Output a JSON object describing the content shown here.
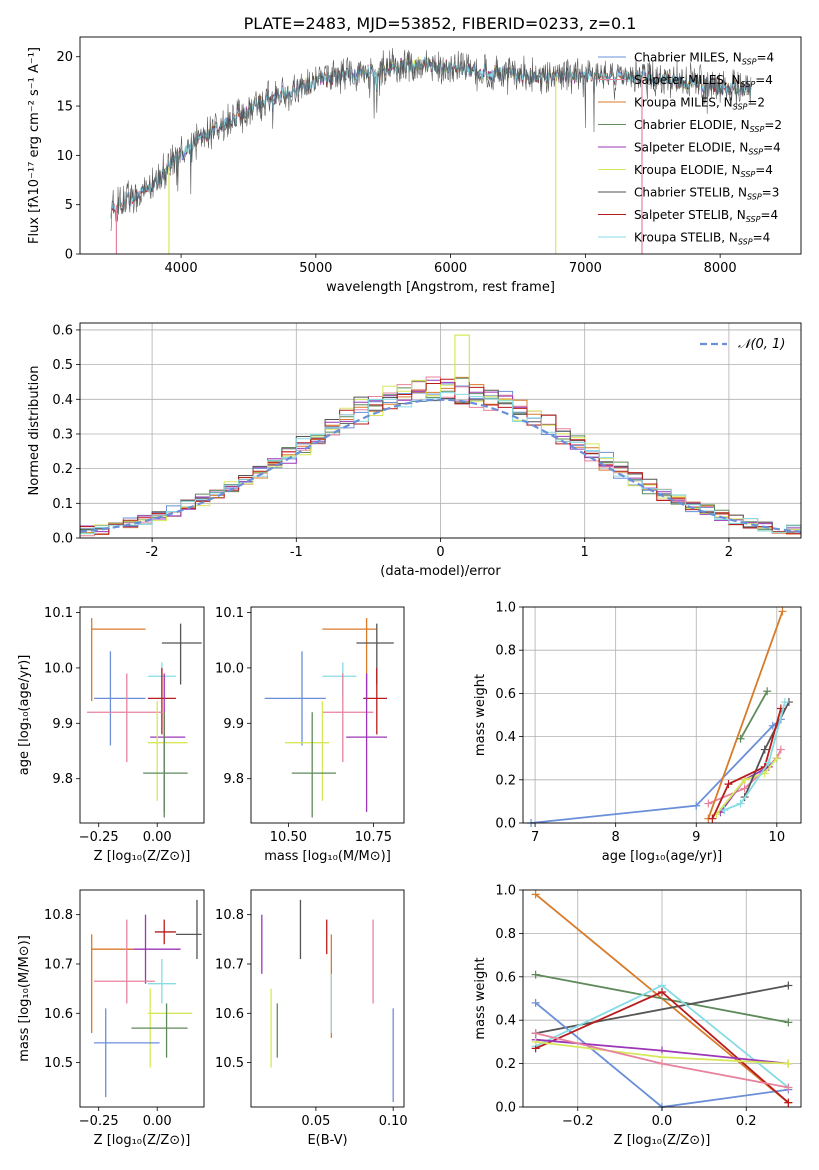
{
  "title": "PLATE=2483, MJD=53852, FIBERID=0233, z=0.1",
  "colors": {
    "Chabrier MILES": "#6a8fd8",
    "Salpeter MILES": "#e8839e",
    "Kroupa MILES": "#d97b2a",
    "Chabrier ELODIE": "#5f8a5a",
    "Salpeter ELODIE": "#9b36b7",
    "Kroupa ELODIE": "#d6e85a",
    "Chabrier STELIB": "#555555",
    "Salpeter STELIB": "#b81c1c",
    "Kroupa STELIB": "#86dbe5"
  },
  "legend_top": [
    {
      "text": "Chabrier MILES, N",
      "sub": "SSP",
      "tail": "=4",
      "model": "Chabrier MILES"
    },
    {
      "text": "Salpeter MILES, N",
      "sub": "SSP",
      "tail": "=4",
      "model": "Salpeter MILES"
    },
    {
      "text": "Kroupa MILES, N",
      "sub": "SSP",
      "tail": "=2",
      "model": "Kroupa MILES"
    },
    {
      "text": "Chabrier ELODIE, N",
      "sub": "SSP",
      "tail": "=2",
      "model": "Chabrier ELODIE"
    },
    {
      "text": "Salpeter ELODIE, N",
      "sub": "SSP",
      "tail": "=4",
      "model": "Salpeter ELODIE"
    },
    {
      "text": "Kroupa ELODIE, N",
      "sub": "SSP",
      "tail": "=4",
      "model": "Kroupa ELODIE"
    },
    {
      "text": "Chabrier STELIB, N",
      "sub": "SSP",
      "tail": "=3",
      "model": "Chabrier STELIB"
    },
    {
      "text": "Salpeter STELIB, N",
      "sub": "SSP",
      "tail": "=4",
      "model": "Salpeter STELIB"
    },
    {
      "text": "Kroupa STELIB, N",
      "sub": "SSP",
      "tail": "=4",
      "model": "Kroupa STELIB"
    }
  ],
  "chart_data": [
    {
      "type": "line",
      "title": "PLATE=2483, MJD=53852, FIBERID=0233, z=0.1",
      "xlabel": "wavelength [Angstrom, rest frame]",
      "ylabel": "Flux [fλ10⁻¹⁷ erg cm⁻² s⁻¹ A⁻¹]",
      "xlim": [
        3250,
        8600
      ],
      "ylim": [
        0,
        22
      ],
      "xticks": [
        4000,
        5000,
        6000,
        7000,
        8000
      ],
      "yticks": [
        0,
        5,
        10,
        15,
        20
      ],
      "continuum": {
        "x": [
          3480,
          3600,
          3800,
          3950,
          4100,
          4300,
          4600,
          5000,
          5400,
          5800,
          6200,
          6600,
          7000,
          7400,
          7800,
          8200
        ],
        "y": [
          4.5,
          5.5,
          7.0,
          9.5,
          11.5,
          13.0,
          15.5,
          17.5,
          18.5,
          19.3,
          18.5,
          18.0,
          18.0,
          18.0,
          17.3,
          16.8
        ]
      },
      "dropouts": [
        {
          "x": 3520,
          "model": "Salpeter MILES"
        },
        {
          "x": 3910,
          "model": "Kroupa ELODIE"
        },
        {
          "x": 6780,
          "model": "Kroupa ELODIE"
        },
        {
          "x": 7420,
          "model": "Salpeter MILES"
        }
      ],
      "legend_loc": "right"
    },
    {
      "type": "histogram",
      "xlabel": "(data-model)/error",
      "ylabel": "Normed distribution",
      "xlim": [
        -2.5,
        2.5
      ],
      "ylim": [
        0,
        0.62
      ],
      "xticks": [
        -2,
        -1,
        0,
        1,
        2
      ],
      "yticks": [
        0.0,
        0.1,
        0.2,
        0.3,
        0.4,
        0.5,
        0.6
      ],
      "reference_label": "𝒩(0, 1)",
      "grid": true
    },
    {
      "type": "scatter",
      "xlabel": "Z [log₁₀(Z/Z⊙)]",
      "ylabel": "age  [log₁₀(age/yr)]",
      "xlim": [
        -0.33,
        0.2
      ],
      "ylim": [
        9.72,
        10.11
      ],
      "xticks": [
        -0.25,
        0.0
      ],
      "xticklabels": [
        "−0.25",
        "0.00"
      ],
      "yticks": [
        9.8,
        9.9,
        10.0,
        10.1
      ],
      "points": [
        {
          "model": "Kroupa MILES",
          "x": -0.28,
          "y": 10.07,
          "xlo": -0.28,
          "xhi": -0.05,
          "ylo": 9.94,
          "yhi": 10.09
        },
        {
          "model": "Chabrier STELIB",
          "x": 0.1,
          "y": 10.045,
          "xlo": 0.02,
          "xhi": 0.19,
          "ylo": 9.97,
          "yhi": 10.08
        },
        {
          "model": "Chabrier MILES",
          "x": -0.2,
          "y": 9.945,
          "xlo": -0.27,
          "xhi": -0.05,
          "ylo": 9.86,
          "yhi": 10.03
        },
        {
          "model": "Kroupa STELIB",
          "x": 0.02,
          "y": 9.985,
          "xlo": -0.04,
          "xhi": 0.08,
          "ylo": 9.95,
          "yhi": 10.01
        },
        {
          "model": "Salpeter STELIB",
          "x": 0.02,
          "y": 9.945,
          "xlo": -0.04,
          "xhi": 0.08,
          "ylo": 9.88,
          "yhi": 10.0
        },
        {
          "model": "Salpeter MILES",
          "x": -0.13,
          "y": 9.92,
          "xlo": -0.3,
          "xhi": 0.02,
          "ylo": 9.83,
          "yhi": 9.99
        },
        {
          "model": "Salpeter ELODIE",
          "x": 0.03,
          "y": 9.875,
          "xlo": -0.03,
          "xhi": 0.12,
          "ylo": 9.74,
          "yhi": 9.99
        },
        {
          "model": "Kroupa ELODIE",
          "x": 0.0,
          "y": 9.865,
          "xlo": -0.04,
          "xhi": 0.13,
          "ylo": 9.76,
          "yhi": 9.94
        },
        {
          "model": "Chabrier ELODIE",
          "x": 0.03,
          "y": 9.81,
          "xlo": -0.06,
          "xhi": 0.13,
          "ylo": 9.73,
          "yhi": 9.92
        }
      ]
    },
    {
      "type": "scatter",
      "xlabel": "mass [log₁₀(M/M⊙)]",
      "ylabel": "",
      "xlim": [
        10.39,
        10.84
      ],
      "ylim": [
        9.72,
        10.11
      ],
      "xticks": [
        10.5,
        10.75
      ],
      "xticklabels": [
        "10.50",
        "10.75"
      ],
      "yticks": [
        9.8,
        9.9,
        10.0,
        10.1
      ],
      "points": [
        {
          "model": "Kroupa MILES",
          "x": 10.73,
          "y": 10.07,
          "xlo": 10.6,
          "xhi": 10.76,
          "ylo": 9.94,
          "yhi": 10.09
        },
        {
          "model": "Chabrier STELIB",
          "x": 10.76,
          "y": 10.045,
          "xlo": 10.7,
          "xhi": 10.81,
          "ylo": 9.97,
          "yhi": 10.08
        },
        {
          "model": "Chabrier MILES",
          "x": 10.54,
          "y": 9.945,
          "xlo": 10.43,
          "xhi": 10.61,
          "ylo": 9.86,
          "yhi": 10.03
        },
        {
          "model": "Kroupa STELIB",
          "x": 10.66,
          "y": 9.985,
          "xlo": 10.6,
          "xhi": 10.7,
          "ylo": 9.95,
          "yhi": 10.01
        },
        {
          "model": "Salpeter STELIB",
          "x": 10.76,
          "y": 9.945,
          "xlo": 10.72,
          "xhi": 10.79,
          "ylo": 9.88,
          "yhi": 10.0
        },
        {
          "model": "Salpeter MILES",
          "x": 10.66,
          "y": 9.92,
          "xlo": 10.6,
          "xhi": 10.75,
          "ylo": 9.83,
          "yhi": 9.99
        },
        {
          "model": "Salpeter ELODIE",
          "x": 10.73,
          "y": 9.875,
          "xlo": 10.67,
          "xhi": 10.79,
          "ylo": 9.74,
          "yhi": 9.99
        },
        {
          "model": "Kroupa ELODIE",
          "x": 10.6,
          "y": 9.865,
          "xlo": 10.49,
          "xhi": 10.62,
          "ylo": 9.76,
          "yhi": 9.94
        },
        {
          "model": "Chabrier ELODIE",
          "x": 10.57,
          "y": 9.81,
          "xlo": 10.51,
          "xhi": 10.64,
          "ylo": 9.73,
          "yhi": 9.92
        }
      ]
    },
    {
      "type": "line",
      "xlabel": "age  [log₁₀(age/yr)]",
      "ylabel": "mass weight",
      "xlim": [
        6.85,
        10.3
      ],
      "ylim": [
        0,
        1
      ],
      "xticks": [
        7,
        8,
        9,
        10
      ],
      "yticks": [
        0.0,
        0.2,
        0.4,
        0.6,
        0.8,
        1.0
      ],
      "grid": true,
      "series": [
        {
          "model": "Chabrier MILES",
          "x": [
            6.95,
            9.0,
            9.95,
            10.05
          ],
          "y": [
            0.0,
            0.08,
            0.45,
            0.48
          ]
        },
        {
          "model": "Salpeter MILES",
          "x": [
            9.15,
            9.6,
            10.0,
            10.05
          ],
          "y": [
            0.09,
            0.16,
            0.3,
            0.34
          ]
        },
        {
          "model": "Kroupa MILES",
          "x": [
            9.15,
            10.07
          ],
          "y": [
            0.02,
            0.98
          ]
        },
        {
          "model": "Chabrier ELODIE",
          "x": [
            9.55,
            9.88
          ],
          "y": [
            0.39,
            0.61
          ]
        },
        {
          "model": "Salpeter ELODIE",
          "x": [
            9.3,
            9.6,
            9.9,
            10.0
          ],
          "y": [
            0.05,
            0.2,
            0.26,
            0.3
          ]
        },
        {
          "model": "Kroupa ELODIE",
          "x": [
            9.25,
            9.6,
            9.85,
            10.0
          ],
          "y": [
            0.04,
            0.2,
            0.23,
            0.3
          ]
        },
        {
          "model": "Chabrier STELIB",
          "x": [
            9.6,
            9.85,
            10.15
          ],
          "y": [
            0.12,
            0.34,
            0.56
          ]
        },
        {
          "model": "Salpeter STELIB",
          "x": [
            9.2,
            9.4,
            9.85,
            10.05
          ],
          "y": [
            0.02,
            0.18,
            0.26,
            0.53
          ]
        },
        {
          "model": "Kroupa STELIB",
          "x": [
            9.35,
            9.55,
            9.9,
            10.1
          ],
          "y": [
            0.06,
            0.09,
            0.28,
            0.56
          ]
        }
      ]
    },
    {
      "type": "scatter",
      "xlabel": "Z [log₁₀(Z/Z⊙)]",
      "ylabel": "mass [log₁₀(M/M⊙)]",
      "xlim": [
        -0.33,
        0.2
      ],
      "ylim": [
        10.41,
        10.85
      ],
      "xticks": [
        -0.25,
        0.0
      ],
      "xticklabels": [
        "−0.25",
        "0.00"
      ],
      "yticks": [
        10.5,
        10.6,
        10.7,
        10.8
      ],
      "points": [
        {
          "model": "Chabrier STELIB",
          "x": 0.17,
          "y": 10.76,
          "xlo": 0.08,
          "xhi": 0.19,
          "ylo": 10.71,
          "yhi": 10.83
        },
        {
          "model": "Salpeter STELIB",
          "x": 0.03,
          "y": 10.765,
          "xlo": -0.01,
          "xhi": 0.08,
          "ylo": 10.74,
          "yhi": 10.79
        },
        {
          "model": "Salpeter ELODIE",
          "x": -0.05,
          "y": 10.73,
          "xlo": -0.13,
          "xhi": 0.1,
          "ylo": 10.66,
          "yhi": 10.8
        },
        {
          "model": "Kroupa MILES",
          "x": -0.28,
          "y": 10.73,
          "xlo": -0.28,
          "xhi": -0.1,
          "ylo": 10.56,
          "yhi": 10.76
        },
        {
          "model": "Salpeter MILES",
          "x": -0.13,
          "y": 10.665,
          "xlo": -0.27,
          "xhi": -0.01,
          "ylo": 10.62,
          "yhi": 10.79
        },
        {
          "model": "Kroupa STELIB",
          "x": 0.02,
          "y": 10.66,
          "xlo": -0.04,
          "xhi": 0.08,
          "ylo": 10.62,
          "yhi": 10.71
        },
        {
          "model": "Kroupa ELODIE",
          "x": -0.03,
          "y": 10.6,
          "xlo": -0.04,
          "xhi": 0.15,
          "ylo": 10.49,
          "yhi": 10.65
        },
        {
          "model": "Chabrier ELODIE",
          "x": 0.04,
          "y": 10.57,
          "xlo": -0.11,
          "xhi": 0.13,
          "ylo": 10.51,
          "yhi": 10.62
        },
        {
          "model": "Chabrier MILES",
          "x": -0.22,
          "y": 10.54,
          "xlo": -0.27,
          "xhi": 0.01,
          "ylo": 10.43,
          "yhi": 10.61
        }
      ]
    },
    {
      "type": "scatter",
      "xlabel": "E(B-V)",
      "ylabel": "",
      "xlim": [
        0.008,
        0.107
      ],
      "ylim": [
        10.41,
        10.85
      ],
      "xticks": [
        0.05,
        0.1
      ],
      "xticklabels": [
        "0.05",
        "0.10"
      ],
      "yticks": [
        10.5,
        10.6,
        10.7,
        10.8
      ],
      "points": [
        {
          "model": "Salpeter ELODIE",
          "x": 0.015,
          "ylo": 10.68,
          "yhi": 10.8
        },
        {
          "model": "Kroupa ELODIE",
          "x": 0.021,
          "ylo": 10.49,
          "yhi": 10.65
        },
        {
          "model": "Chabrier ELODIE",
          "x": 0.025,
          "ylo": 10.51,
          "yhi": 10.62
        },
        {
          "model": "Chabrier STELIB",
          "x": 0.04,
          "ylo": 10.71,
          "yhi": 10.83
        },
        {
          "model": "Salpeter STELIB",
          "x": 0.057,
          "ylo": 10.72,
          "yhi": 10.79
        },
        {
          "model": "Kroupa MILES",
          "x": 0.06,
          "ylo": 10.55,
          "yhi": 10.76
        },
        {
          "model": "Kroupa STELIB",
          "x": 0.06,
          "ylo": 10.56,
          "yhi": 10.68
        },
        {
          "model": "Salpeter MILES",
          "x": 0.087,
          "ylo": 10.62,
          "yhi": 10.79
        },
        {
          "model": "Chabrier MILES",
          "x": 0.1,
          "ylo": 10.42,
          "yhi": 10.61
        }
      ]
    },
    {
      "type": "line",
      "xlabel": "Z [log₁₀(Z/Z⊙)]",
      "ylabel": "mass weight",
      "xlim": [
        -0.33,
        0.33
      ],
      "ylim": [
        0,
        1
      ],
      "xticks": [
        -0.2,
        0.0,
        0.2
      ],
      "xticklabels": [
        "−0.2",
        "0.0",
        "0.2"
      ],
      "yticks": [
        0.0,
        0.2,
        0.4,
        0.6,
        0.8,
        1.0
      ],
      "grid": true,
      "series": [
        {
          "model": "Kroupa MILES",
          "x": [
            -0.3,
            0.3
          ],
          "y": [
            0.98,
            0.02
          ]
        },
        {
          "model": "Chabrier ELODIE",
          "x": [
            -0.3,
            0.3
          ],
          "y": [
            0.61,
            0.39
          ]
        },
        {
          "model": "Chabrier STELIB",
          "x": [
            -0.3,
            0.3
          ],
          "y": [
            0.34,
            0.56
          ]
        },
        {
          "model": "Chabrier MILES",
          "x": [
            -0.3,
            0.0,
            0.3
          ],
          "y": [
            0.48,
            0.0,
            0.08
          ]
        },
        {
          "model": "Kroupa STELIB",
          "x": [
            -0.3,
            0.0,
            0.3
          ],
          "y": [
            0.28,
            0.56,
            0.09
          ]
        },
        {
          "model": "Salpeter STELIB",
          "x": [
            -0.3,
            0.0,
            0.3
          ],
          "y": [
            0.27,
            0.53,
            0.02
          ]
        },
        {
          "model": "Salpeter ELODIE",
          "x": [
            -0.3,
            0.0,
            0.3
          ],
          "y": [
            0.31,
            0.26,
            0.2
          ]
        },
        {
          "model": "Kroupa ELODIE",
          "x": [
            -0.3,
            0.0,
            0.3
          ],
          "y": [
            0.3,
            0.23,
            0.2
          ]
        },
        {
          "model": "Salpeter MILES",
          "x": [
            -0.3,
            0.0,
            0.3
          ],
          "y": [
            0.34,
            0.2,
            0.09
          ]
        }
      ]
    }
  ]
}
